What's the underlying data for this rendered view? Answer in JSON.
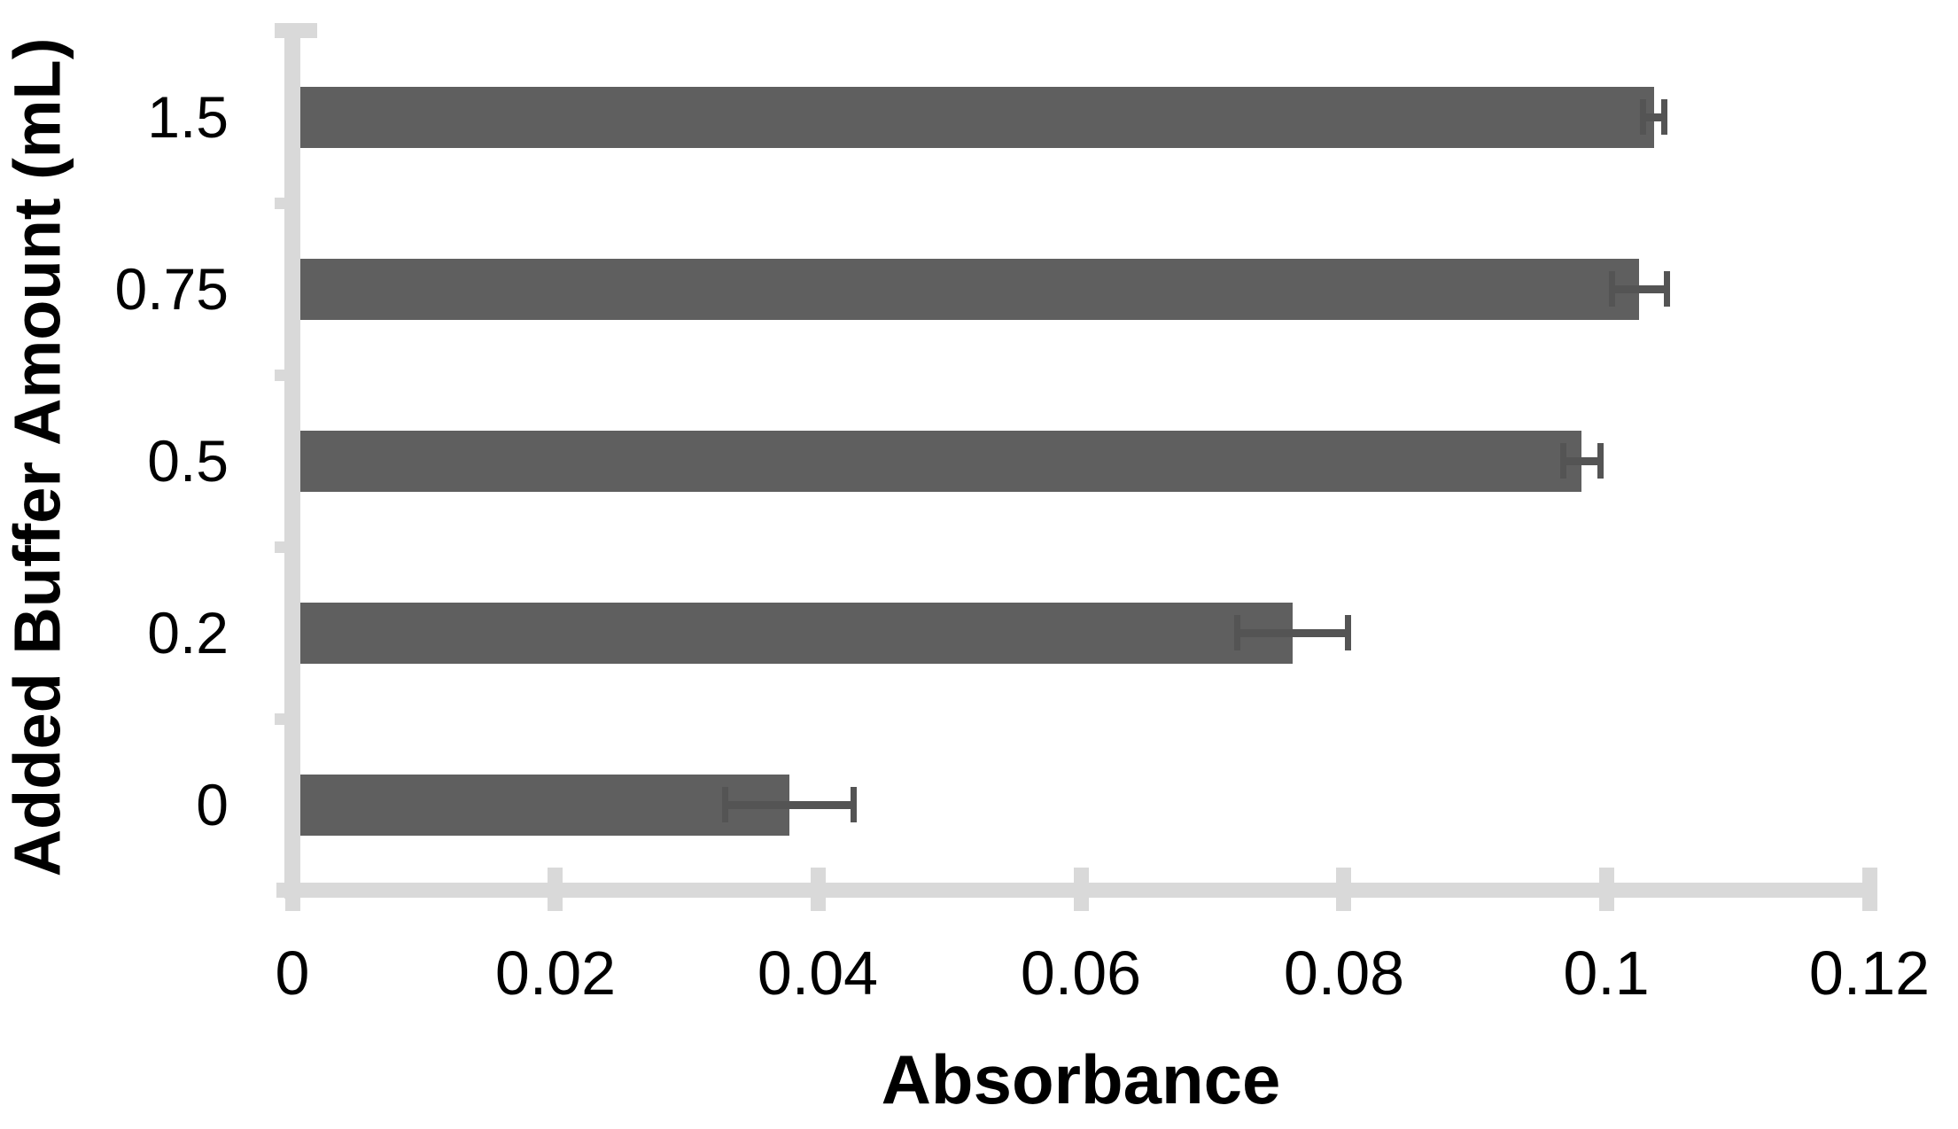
{
  "chart_data": {
    "type": "bar",
    "orientation": "horizontal",
    "title": "",
    "xlabel": "Absorbance",
    "ylabel": "Added Buffer Amount (mL)",
    "categories": [
      "1.5",
      "0.75",
      "0.5",
      "0.2",
      "0"
    ],
    "values": [
      0.1036,
      0.1025,
      0.0981,
      0.0761,
      0.0378
    ],
    "errors": [
      0.0008,
      0.0021,
      0.0014,
      0.0042,
      0.0049
    ],
    "xlim": [
      0,
      0.12
    ],
    "xtick_values": [
      0,
      0.02,
      0.04,
      0.06,
      0.08,
      0.1,
      0.12
    ],
    "xtick_labels": [
      "0",
      "0.02",
      "0.04",
      "0.06",
      "0.08",
      "0.1",
      "0.12"
    ],
    "grid": false,
    "legend": "none",
    "colors": {
      "bar": "#5f5f5f",
      "error_bar": "#545454",
      "axis": "#d9d9d9",
      "text": "#000000",
      "background": "#ffffff"
    }
  }
}
